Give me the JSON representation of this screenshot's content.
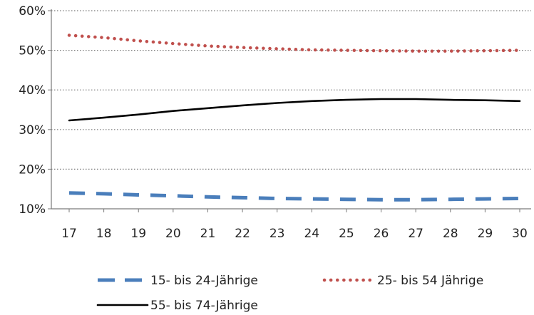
{
  "chart_data": {
    "type": "line",
    "title": "",
    "xlabel": "",
    "ylabel": "",
    "x": [
      17,
      18,
      19,
      20,
      21,
      22,
      23,
      24,
      25,
      26,
      27,
      28,
      29,
      30
    ],
    "x_tick_labels": [
      "17",
      "18",
      "19",
      "20",
      "21",
      "22",
      "23",
      "24",
      "25",
      "26",
      "27",
      "28",
      "29",
      "30"
    ],
    "ylim": [
      10,
      60
    ],
    "y_ticks": [
      10,
      20,
      30,
      40,
      50,
      60
    ],
    "y_tick_labels": [
      "10%",
      "20%",
      "30%",
      "40%",
      "50%",
      "60%"
    ],
    "grid": "horizontal dotted",
    "legend_position": "bottom",
    "series": [
      {
        "name": "15- bis 24-Jährige",
        "color": "#4a7ebb",
        "style": "dashed",
        "values": [
          14.0,
          13.8,
          13.5,
          13.3,
          13.0,
          12.8,
          12.6,
          12.5,
          12.4,
          12.3,
          12.3,
          12.4,
          12.5,
          12.6
        ]
      },
      {
        "name": "25- bis 54 Jährige",
        "color": "#c0504d",
        "style": "dotted",
        "values": [
          53.8,
          53.2,
          52.4,
          51.7,
          51.1,
          50.7,
          50.4,
          50.1,
          50.0,
          49.9,
          49.8,
          49.8,
          49.9,
          50.0
        ]
      },
      {
        "name": "55- bis 74-Jährige",
        "color": "#000000",
        "style": "solid",
        "values": [
          32.3,
          33.0,
          33.8,
          34.7,
          35.4,
          36.1,
          36.7,
          37.2,
          37.5,
          37.7,
          37.7,
          37.5,
          37.4,
          37.2
        ]
      }
    ]
  }
}
